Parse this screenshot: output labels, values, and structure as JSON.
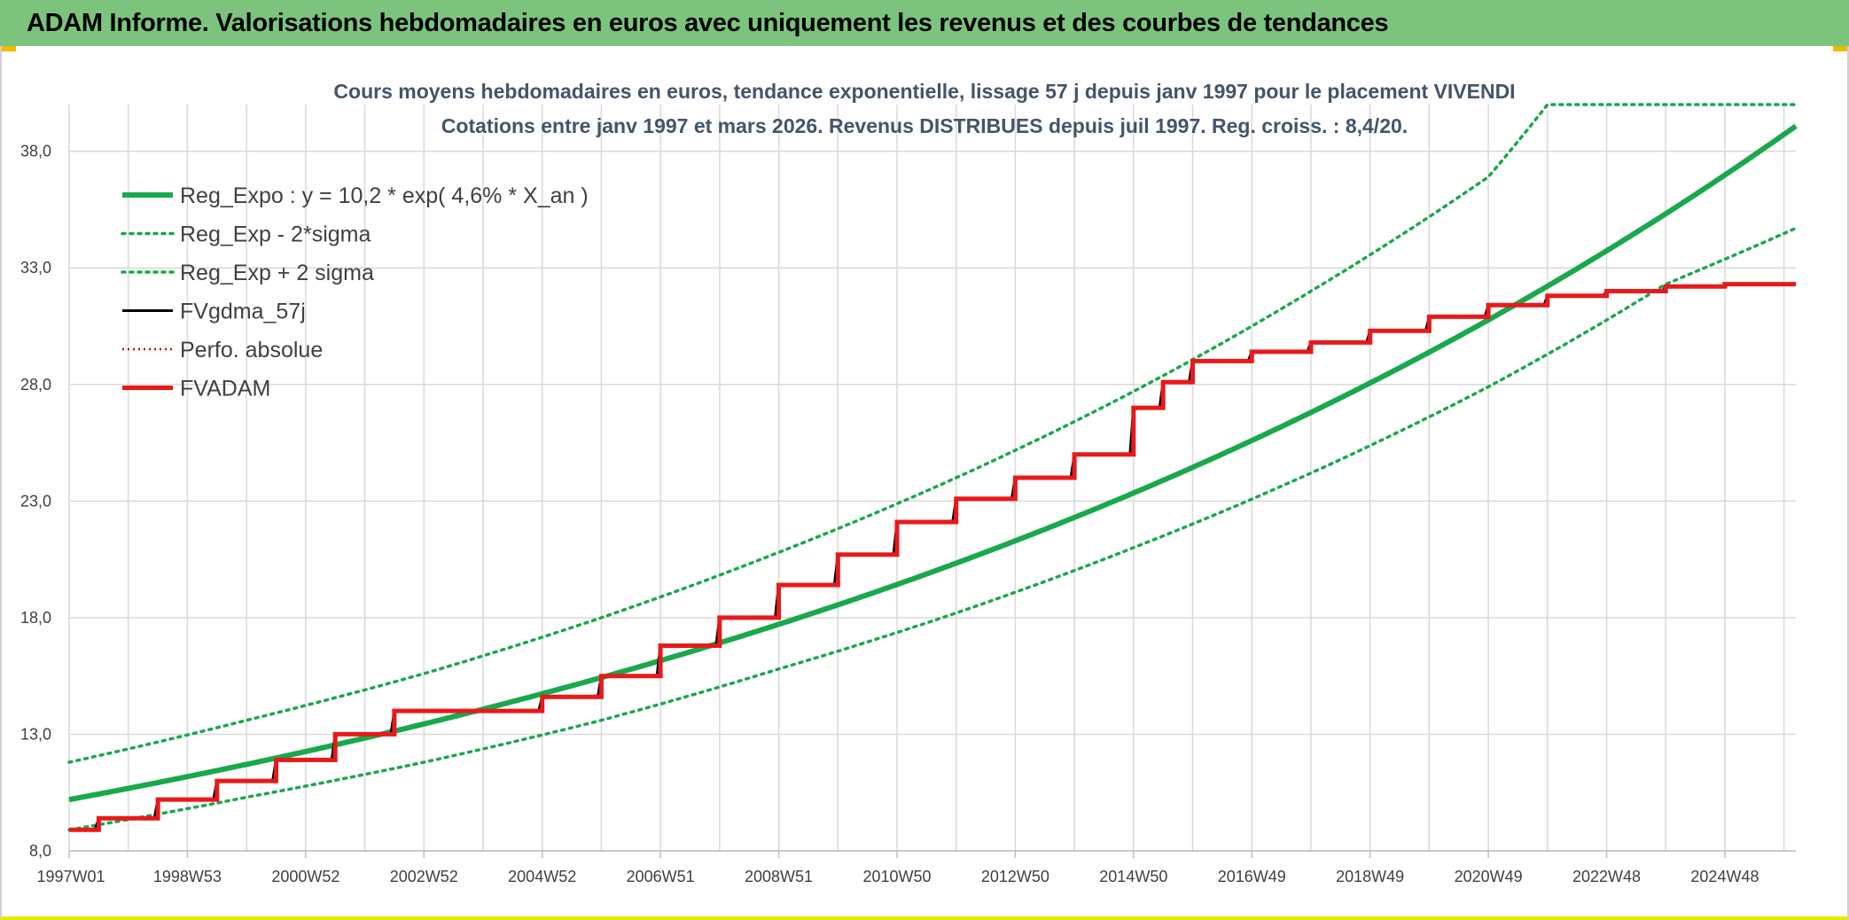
{
  "banner": {
    "title": "ADAM Informe. Valorisations hebdomadaires en euros avec uniquement les revenus et des courbes de tendances"
  },
  "chart_data": {
    "type": "line",
    "title_line1": "Cours moyens hebdomadaires en euros, tendance exponentielle, lissage 57 j depuis janv 1997 pour le placement VIVENDI",
    "title_line2": "Cotations entre janv 1997 et mars 2026. Revenus DISTRIBUES depuis juil 1997. Reg. croiss. : 8,4/20.",
    "ylim": [
      8,
      40
    ],
    "y_ticks": [
      "8,0",
      "13,0",
      "18,0",
      "23,0",
      "28,0",
      "33,0",
      "38,0"
    ],
    "x_ticks": [
      "1997W01",
      "1998W53",
      "2000W52",
      "2002W52",
      "2004W52",
      "2006W51",
      "2008W51",
      "2010W50",
      "2012W50",
      "2014W50",
      "2016W49",
      "2018W49",
      "2020W49",
      "2022W48",
      "2024W48"
    ],
    "x_range": [
      "1997W01",
      "2026W12"
    ],
    "grid": true,
    "legend_position": "top-left",
    "colors": {
      "reg_expo": "#19a84b",
      "fvadam": "#e8191b",
      "fvgdma": "#000000",
      "perfo": "#c00000",
      "grid": "#d9d9d9"
    },
    "series": [
      {
        "name": "Reg_Expo : y = 10,2 * exp( 4,6% *  X_an )",
        "style": "solid-thick-green",
        "formula": {
          "a": 10.2,
          "b": 0.046
        },
        "x": [
          1997.0,
          2000.0,
          2003.0,
          2006.0,
          2009.0,
          2012.0,
          2015.0,
          2018.0,
          2021.0,
          2024.0,
          2026.2
        ],
        "values": [
          10.2,
          11.8,
          13.5,
          15.6,
          18.0,
          20.8,
          23.9,
          27.7,
          31.9,
          36.9,
          39.7
        ]
      },
      {
        "name": "Reg_Exp - 2*sigma",
        "style": "dotted-green",
        "x": [
          1997.0,
          2000.0,
          2003.0,
          2006.0,
          2009.0,
          2012.0,
          2015.0,
          2018.0,
          2021.0,
          2024.0,
          2026.2
        ],
        "values": [
          8.9,
          10.3,
          11.8,
          13.6,
          15.8,
          18.2,
          21.0,
          24.2,
          27.9,
          32.3,
          34.7
        ]
      },
      {
        "name": "Reg_Exp + 2 sigma",
        "style": "dotted-green",
        "x": [
          1997.0,
          2000.0,
          2003.0,
          2006.0,
          2009.0,
          2012.0,
          2015.0,
          2018.0,
          2021.0,
          2022.0,
          2026.2
        ],
        "values": [
          11.8,
          13.6,
          15.6,
          18.0,
          20.8,
          24.0,
          27.7,
          32.0,
          36.9,
          40.0,
          40.0
        ]
      },
      {
        "name": "FVgdma_57j",
        "style": "solid-black",
        "same_as": "FVADAM-smoothed"
      },
      {
        "name": "Perfo. absolue",
        "style": "dotted-red",
        "same_as": "FVADAM"
      },
      {
        "name": "FVADAM",
        "style": "solid-thick-red-step",
        "x": [
          1997.0,
          1997.5,
          1998.0,
          1998.5,
          1999.0,
          1999.5,
          2000.0,
          2000.5,
          2001.0,
          2001.5,
          2002.0,
          2002.5,
          2003.0,
          2003.5,
          2004.0,
          2004.5,
          2005.0,
          2005.5,
          2006.0,
          2006.5,
          2007.0,
          2007.5,
          2008.0,
          2008.5,
          2009.0,
          2009.5,
          2010.0,
          2010.5,
          2011.0,
          2011.5,
          2012.0,
          2012.5,
          2013.0,
          2013.5,
          2014.0,
          2014.5,
          2015.0,
          2015.5,
          2016.0,
          2016.5,
          2017.0,
          2017.5,
          2018.0,
          2018.5,
          2019.0,
          2019.5,
          2020.0,
          2020.5,
          2021.0,
          2021.5,
          2022.0,
          2022.5,
          2023.0,
          2023.5,
          2024.0,
          2024.5,
          2025.0,
          2025.5,
          2026.2
        ],
        "values": [
          8.9,
          9.4,
          9.4,
          10.2,
          10.2,
          11.0,
          11.0,
          11.9,
          11.9,
          13.0,
          13.0,
          14.0,
          14.0,
          14.0,
          14.0,
          14.0,
          14.6,
          14.6,
          15.5,
          15.5,
          16.8,
          16.8,
          18.0,
          18.0,
          19.4,
          19.4,
          20.7,
          20.7,
          22.1,
          22.1,
          23.1,
          23.1,
          24.0,
          24.0,
          25.0,
          25.0,
          27.0,
          28.1,
          29.0,
          29.0,
          29.4,
          29.4,
          29.8,
          29.8,
          30.3,
          30.3,
          30.9,
          30.9,
          31.4,
          31.4,
          31.8,
          31.8,
          32.0,
          32.0,
          32.2,
          32.2,
          32.3,
          32.3,
          32.3
        ]
      }
    ]
  }
}
